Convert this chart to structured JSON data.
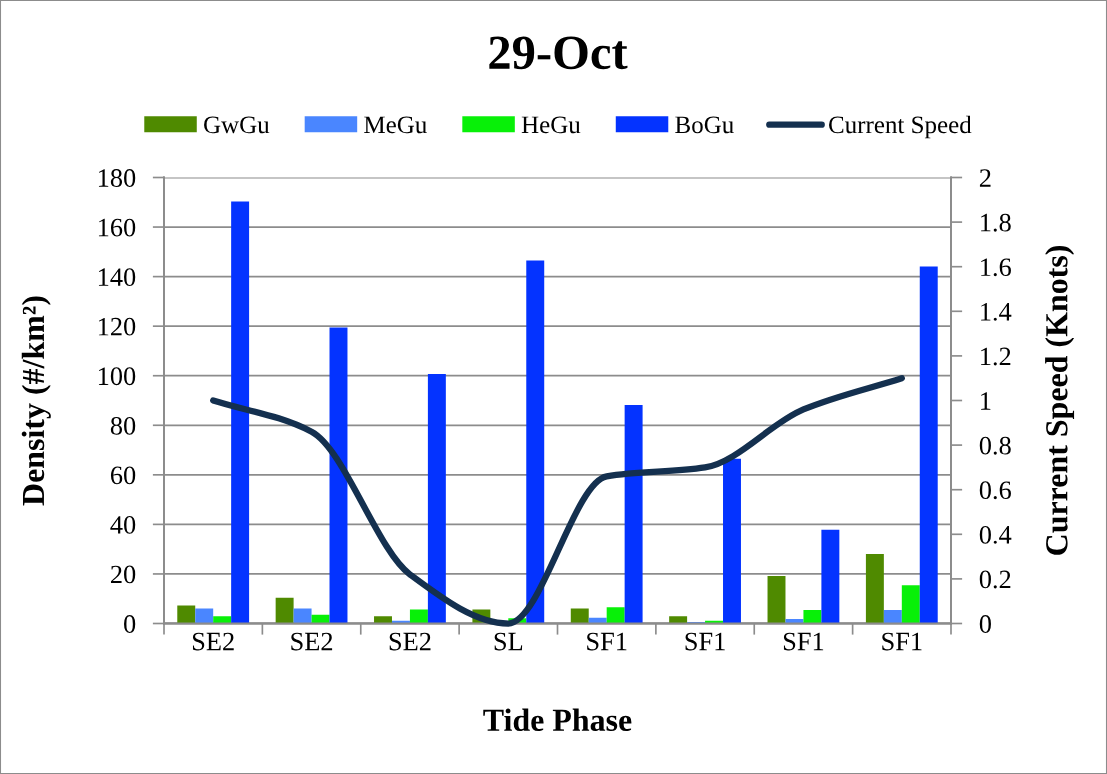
{
  "chart_data": {
    "type": "bar",
    "title": "29-Oct",
    "xlabel": "Tide Phase",
    "ylabel": "Density (#/km²)",
    "y2label": "Current Speed (Knots)",
    "categories": [
      "SE2",
      "SE2",
      "SE2",
      "SL",
      "SF1",
      "SF1",
      "SF1",
      "SF1"
    ],
    "series": [
      {
        "name": "GwGu",
        "color": "#4f8a00",
        "values": [
          7.3,
          10.4,
          2.9,
          5.6,
          6.1,
          2.9,
          19.2,
          28.0
        ]
      },
      {
        "name": "MeGu",
        "color": "#4a86ff",
        "values": [
          6.1,
          6.1,
          1.1,
          null,
          2.3,
          0.6,
          1.8,
          5.4
        ]
      },
      {
        "name": "HeGu",
        "color": "#08f008",
        "values": [
          2.9,
          3.5,
          5.6,
          2.1,
          6.6,
          1.1,
          5.4,
          15.4
        ]
      },
      {
        "name": "BoGu",
        "color": "#0433ff",
        "values": [
          170.3,
          119.5,
          100.7,
          146.5,
          88.2,
          66.5,
          37.8,
          144.1
        ]
      },
      {
        "name": "Current Speed",
        "type": "line",
        "axis": "y2",
        "color": "#14304f",
        "values": [
          1.0,
          0.86,
          0.22,
          0.0,
          0.66,
          0.7,
          0.96,
          1.1
        ]
      }
    ],
    "ylim": [
      0,
      180
    ],
    "yticks": [
      0,
      20,
      40,
      60,
      80,
      100,
      120,
      140,
      160,
      180
    ],
    "y2lim": [
      0,
      2
    ],
    "y2ticks": [
      0,
      0.2,
      0.4,
      0.6,
      0.8,
      1,
      1.2,
      1.4,
      1.6,
      1.8,
      2
    ],
    "grid": "y",
    "legend": "top"
  }
}
